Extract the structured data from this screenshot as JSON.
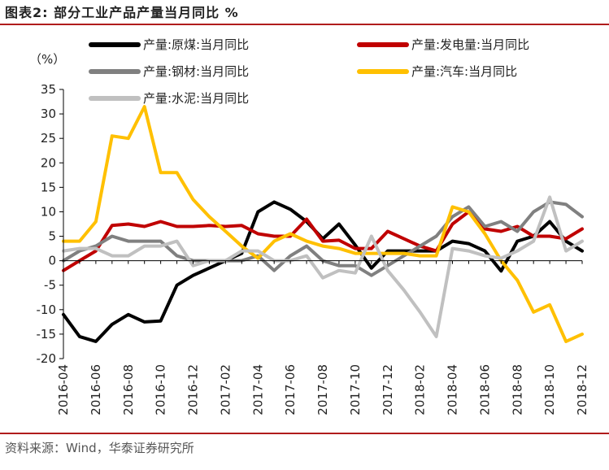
{
  "title": "图表2:  部分工业产品产量当月同比 %",
  "source": "资料来源：Wind，华泰证券研究所",
  "chart_data": {
    "type": "line",
    "title": "部分工业产品产量当月同比 %",
    "ylabel": "（%）",
    "xlabel": "",
    "ylim": [
      -20,
      35
    ],
    "yticks": [
      35,
      30,
      25,
      20,
      15,
      10,
      5,
      0,
      -5,
      -10,
      -15,
      -20
    ],
    "x": [
      "2016-04",
      "2016-05",
      "2016-06",
      "2016-07",
      "2016-08",
      "2016-09",
      "2016-10",
      "2016-11",
      "2016-12",
      "2017-01",
      "2017-02",
      "2017-03",
      "2017-04",
      "2017-05",
      "2017-06",
      "2017-07",
      "2017-08",
      "2017-09",
      "2017-10",
      "2017-11",
      "2017-12",
      "2018-01",
      "2018-02",
      "2018-03",
      "2018-04",
      "2018-05",
      "2018-06",
      "2018-07",
      "2018-08",
      "2018-09",
      "2018-10",
      "2018-11",
      "2018-12"
    ],
    "xtick_labels": [
      "2016-04",
      "2016-06",
      "2016-08",
      "2016-10",
      "2016-12",
      "2017-02",
      "2017-04",
      "2017-06",
      "2017-08",
      "2017-10",
      "2017-12",
      "2018-02",
      "2018-04",
      "2018-06",
      "2018-08",
      "2018-10",
      "2018-12"
    ],
    "legend": [
      "产量:原煤:当月同比",
      "产量:发电量:当月同比",
      "产量:钢材:当月同比",
      "产量:汽车:当月同比",
      "产量:水泥:当月同比"
    ],
    "series": [
      {
        "name": "产量:原煤:当月同比",
        "color": "#000000",
        "values": [
          -11,
          -15.5,
          -16.5,
          -13,
          -11,
          -12.5,
          -12.3,
          -5,
          -3,
          -1.5,
          0,
          1.5,
          10,
          12,
          10.5,
          8,
          4.5,
          7.5,
          3.2,
          -1.5,
          2,
          2,
          2,
          2,
          4,
          3.5,
          2,
          -2.1,
          4,
          5,
          8,
          4,
          2
        ]
      },
      {
        "name": "产量:发电量:当月同比",
        "color": "#c00000",
        "values": [
          -2,
          0,
          2,
          7.2,
          7.5,
          7,
          8,
          7,
          7,
          7.2,
          7,
          7.2,
          5.5,
          5,
          5,
          8.5,
          4,
          4.2,
          2.5,
          2.5,
          6,
          4.5,
          3,
          2,
          7.5,
          10,
          6.5,
          6,
          7,
          5,
          5,
          4.5,
          6.5
        ]
      },
      {
        "name": "产量:钢材:当月同比",
        "color": "#808080",
        "values": [
          0,
          2,
          3,
          5,
          4,
          4,
          4,
          1,
          0,
          0,
          0,
          0,
          1,
          -2,
          1,
          3,
          0,
          -1,
          -1,
          -3,
          -1,
          1,
          3,
          5,
          9,
          11,
          7,
          8,
          6,
          10,
          12,
          11.5,
          9
        ]
      },
      {
        "name": "产量:汽车:当月同比",
        "color": "#ffc000",
        "values": [
          4,
          4,
          8,
          25.5,
          25,
          31.5,
          18,
          18,
          12.5,
          9,
          6,
          3,
          0.5,
          4,
          5.5,
          4,
          3,
          2.5,
          1.5,
          1.5,
          1.5,
          1.5,
          1,
          1,
          11,
          10,
          5.5,
          0,
          -4,
          -10.5,
          -9,
          -16.5,
          -15
        ]
      },
      {
        "name": "产量:水泥:当月同比",
        "color": "#c0c0c0",
        "values": [
          2,
          2.5,
          2.5,
          1,
          1,
          3,
          3,
          4,
          -1,
          0,
          0,
          2,
          2,
          0,
          0,
          1,
          -3.5,
          -2,
          -2.5,
          5,
          -2,
          -6,
          -10.5,
          -15.5,
          2.5,
          2,
          1,
          0.5,
          2,
          4,
          13,
          2,
          4
        ]
      }
    ]
  }
}
